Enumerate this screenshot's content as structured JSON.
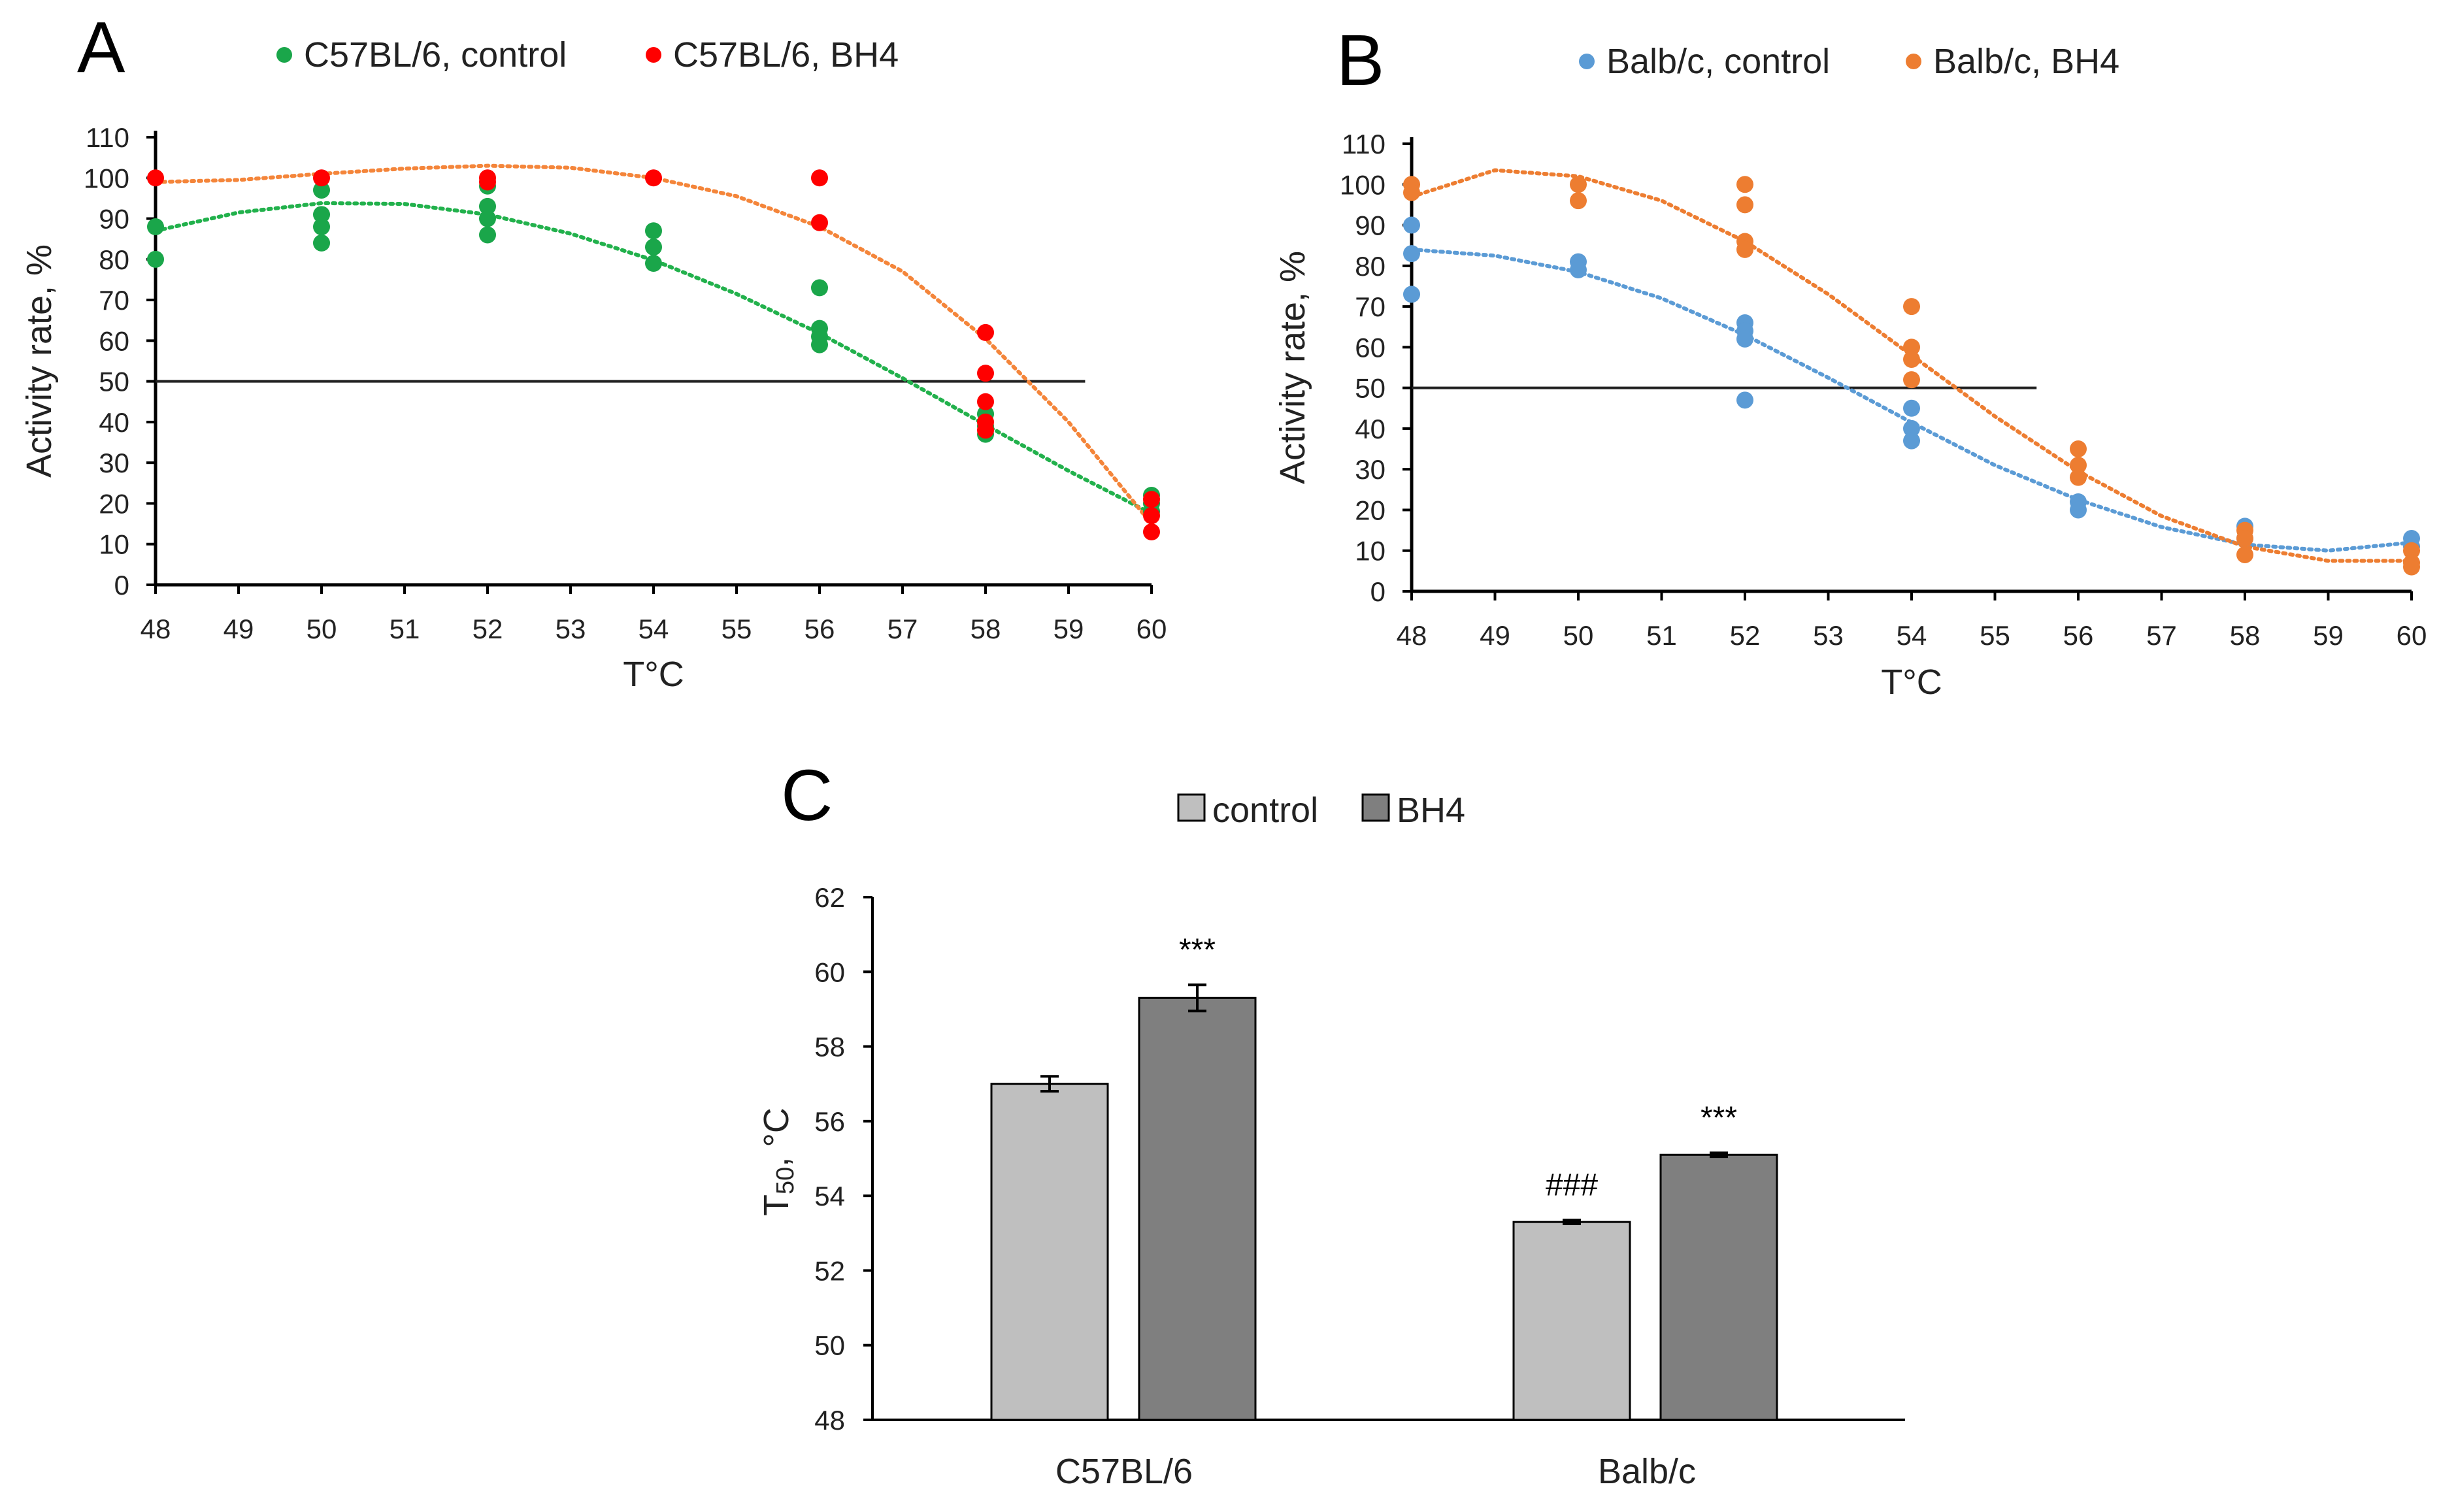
{
  "chart_data": [
    {
      "panel": "A",
      "type": "scatter",
      "xlabel": "T°C",
      "ylabel": "Activity rate, %",
      "xlim": [
        48,
        60
      ],
      "ylim": [
        0,
        110
      ],
      "xticks": [
        48,
        49,
        50,
        51,
        52,
        53,
        54,
        55,
        56,
        57,
        58,
        59,
        60
      ],
      "yticks": [
        0,
        10,
        20,
        30,
        40,
        50,
        60,
        70,
        80,
        90,
        100,
        110
      ],
      "reference_line": {
        "y": 50,
        "x_range": [
          48,
          59.2
        ]
      },
      "series": [
        {
          "name": "C57BL/6, control",
          "color": "#1aa64a",
          "points": [
            [
              48,
              88
            ],
            [
              48,
              80
            ],
            [
              50,
              97
            ],
            [
              50,
              91
            ],
            [
              50,
              88
            ],
            [
              50,
              84
            ],
            [
              52,
              98
            ],
            [
              52,
              93
            ],
            [
              52,
              90
            ],
            [
              52,
              86
            ],
            [
              54,
              87
            ],
            [
              54,
              83
            ],
            [
              54,
              79
            ],
            [
              56,
              73
            ],
            [
              56,
              63
            ],
            [
              56,
              61
            ],
            [
              56,
              59
            ],
            [
              58,
              42
            ],
            [
              58,
              39
            ],
            [
              58,
              37
            ],
            [
              60,
              22
            ],
            [
              60,
              20
            ],
            [
              60,
              18
            ]
          ],
          "trend_color": "#22b14c",
          "trend": [
            [
              48,
              87
            ],
            [
              49,
              91.5
            ],
            [
              50,
              93.8
            ],
            [
              51,
              93.6
            ],
            [
              52,
              91
            ],
            [
              53,
              86.3
            ],
            [
              54,
              79.8
            ],
            [
              55,
              71.5
            ],
            [
              56,
              61.8
            ],
            [
              57,
              50.8
            ],
            [
              58,
              39.3
            ],
            [
              59,
              28
            ],
            [
              60,
              17.5
            ]
          ]
        },
        {
          "name": "C57BL/6, BH4",
          "color": "#ff0000",
          "points": [
            [
              48,
              100
            ],
            [
              50,
              100
            ],
            [
              52,
              100
            ],
            [
              52,
              99
            ],
            [
              54,
              100
            ],
            [
              56,
              100
            ],
            [
              56,
              89
            ],
            [
              58,
              62
            ],
            [
              58,
              52
            ],
            [
              58,
              45
            ],
            [
              58,
              40
            ],
            [
              58,
              38
            ],
            [
              60,
              21
            ],
            [
              60,
              17
            ],
            [
              60,
              13
            ]
          ],
          "trend_color": "#f4853a",
          "trend": [
            [
              48,
              99
            ],
            [
              49,
              99.5
            ],
            [
              50,
              101
            ],
            [
              51,
              102.3
            ],
            [
              52,
              103
            ],
            [
              53,
              102.5
            ],
            [
              54,
              100
            ],
            [
              55,
              95.5
            ],
            [
              56,
              88
            ],
            [
              57,
              77
            ],
            [
              58,
              60.5
            ],
            [
              59,
              40
            ],
            [
              60,
              15
            ]
          ]
        }
      ],
      "legend_position": "top"
    },
    {
      "panel": "B",
      "type": "scatter",
      "xlabel": "T°C",
      "ylabel": "Activity rate, %",
      "xlim": [
        48,
        60
      ],
      "ylim": [
        0,
        110
      ],
      "xticks": [
        48,
        49,
        50,
        51,
        52,
        53,
        54,
        55,
        56,
        57,
        58,
        59,
        60
      ],
      "yticks": [
        0,
        10,
        20,
        30,
        40,
        50,
        60,
        70,
        80,
        90,
        100,
        110
      ],
      "reference_line": {
        "y": 50,
        "x_range": [
          48,
          55.5
        ]
      },
      "series": [
        {
          "name": "Balb/c, control",
          "color": "#5b9bd5",
          "points": [
            [
              48,
              90
            ],
            [
              48,
              83
            ],
            [
              48,
              73
            ],
            [
              50,
              81
            ],
            [
              50,
              79
            ],
            [
              52,
              66
            ],
            [
              52,
              64
            ],
            [
              52,
              62
            ],
            [
              52,
              47
            ],
            [
              54,
              45
            ],
            [
              54,
              40
            ],
            [
              54,
              37
            ],
            [
              56,
              22
            ],
            [
              56,
              20
            ],
            [
              58,
              16
            ],
            [
              58,
              13
            ],
            [
              60,
              13
            ],
            [
              60,
              11
            ]
          ],
          "trend_color": "#5b9bd5",
          "trend": [
            [
              48,
              84
            ],
            [
              49,
              82.5
            ],
            [
              50,
              78.5
            ],
            [
              51,
              72
            ],
            [
              52,
              63
            ],
            [
              53,
              52.5
            ],
            [
              54,
              41.5
            ],
            [
              55,
              31
            ],
            [
              56,
              22.5
            ],
            [
              57,
              15.8
            ],
            [
              58,
              11.5
            ],
            [
              59,
              10
            ],
            [
              60,
              12
            ]
          ]
        },
        {
          "name": "Balb/c, BH4",
          "color": "#ed7d31",
          "points": [
            [
              48,
              100
            ],
            [
              48,
              98
            ],
            [
              50,
              100
            ],
            [
              50,
              96
            ],
            [
              52,
              100
            ],
            [
              52,
              95
            ],
            [
              52,
              86
            ],
            [
              52,
              84
            ],
            [
              54,
              70
            ],
            [
              54,
              60
            ],
            [
              54,
              57
            ],
            [
              54,
              52
            ],
            [
              56,
              35
            ],
            [
              56,
              31
            ],
            [
              56,
              28
            ],
            [
              58,
              15
            ],
            [
              58,
              13
            ],
            [
              58,
              9
            ],
            [
              60,
              10
            ],
            [
              60,
              7
            ],
            [
              60,
              6
            ]
          ],
          "trend_color": "#ed7d31",
          "trend": [
            [
              48,
              97
            ],
            [
              49,
              103.5
            ],
            [
              50,
              102
            ],
            [
              51,
              96
            ],
            [
              52,
              86
            ],
            [
              53,
              73
            ],
            [
              54,
              58
            ],
            [
              55,
              43
            ],
            [
              56,
              29.5
            ],
            [
              57,
              18.5
            ],
            [
              58,
              11
            ],
            [
              59,
              7.5
            ],
            [
              60,
              7.5
            ]
          ]
        }
      ],
      "legend_position": "top"
    },
    {
      "panel": "C",
      "type": "bar",
      "ylabel_main": "T",
      "ylabel_sub": "50",
      "ylabel_rest": ", °C",
      "ylim": [
        48,
        62
      ],
      "yticks": [
        48,
        50,
        52,
        54,
        56,
        58,
        60,
        62
      ],
      "categories": [
        "C57BL/6",
        "Balb/c"
      ],
      "series": [
        {
          "name": "control",
          "color": "#bfbfbf",
          "values": [
            57.0,
            53.3
          ],
          "errors": [
            0.2,
            0.05
          ]
        },
        {
          "name": "BH4",
          "color": "#7f7f7f",
          "values": [
            59.3,
            55.1
          ],
          "errors": [
            0.35,
            0.05
          ]
        }
      ],
      "annotations": [
        {
          "category": 0,
          "series": 1,
          "text": "***"
        },
        {
          "category": 1,
          "series": 0,
          "text": "###"
        },
        {
          "category": 1,
          "series": 1,
          "text": "***"
        }
      ],
      "legend_position": "top"
    }
  ]
}
